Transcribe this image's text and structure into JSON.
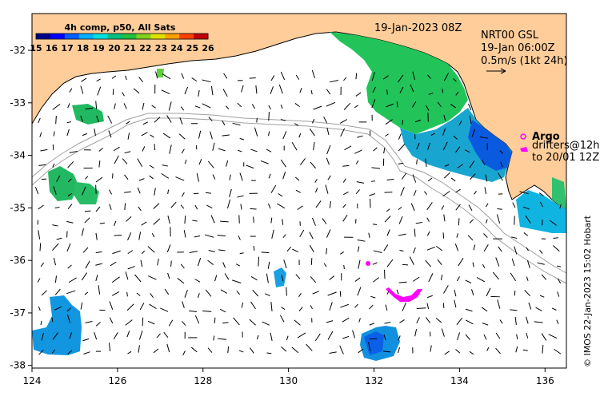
{
  "colorbar": {
    "title": "4h comp, p50, All Sats",
    "labels": [
      "15",
      "16",
      "17",
      "18",
      "19",
      "20",
      "21",
      "22",
      "23",
      "24",
      "25",
      "26"
    ],
    "colors": [
      "#00008b",
      "#0000ff",
      "#0060ff",
      "#00b0ff",
      "#00e0e0",
      "#00c080",
      "#20c040",
      "#80d020",
      "#e0e000",
      "#ffa000",
      "#ff4000",
      "#c00000"
    ]
  },
  "header": {
    "datetime": "19-Jan-2023 08Z",
    "product": "NRT00 GSL",
    "product_time": "19-Jan 06:00Z",
    "scale_text": "0.5m/s (1kt 24h)"
  },
  "legend": {
    "argo_label": "Argo",
    "drifters_line1": "drifters@12h",
    "drifters_line2": "to 20/01 12Z"
  },
  "credit": "© IMOS 22-Jan-2023 15:02 Hobart",
  "axes": {
    "x_ticks": [
      "124",
      "126",
      "128",
      "130",
      "132",
      "134",
      "136"
    ],
    "y_ticks": [
      "-32",
      "-33",
      "-34",
      "-35",
      "-36",
      "-37",
      "-38"
    ],
    "lon_range": [
      124,
      136.5
    ],
    "lat_range": [
      -38.05,
      -31.3
    ]
  },
  "colors": {
    "land": "#fecd9a",
    "coast": "#000000",
    "bathymetry": "#a0a0a0",
    "argo": "#ff00ff"
  }
}
